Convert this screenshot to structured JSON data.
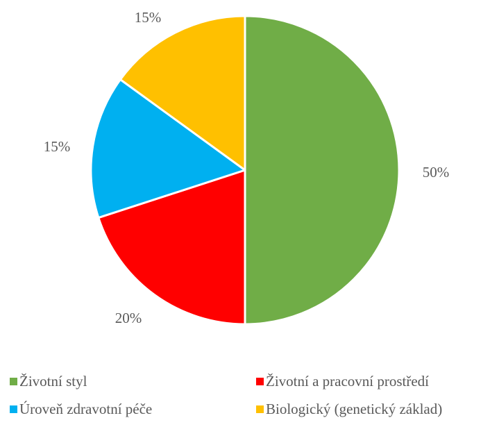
{
  "chart_data": {
    "type": "pie",
    "title": "",
    "slices": [
      {
        "label": "Životní styl",
        "value": 50,
        "value_label": "50%",
        "color": "#70AD47"
      },
      {
        "label": "Životní a pracovní prostředí",
        "value": 20,
        "value_label": "20%",
        "color": "#FF0000"
      },
      {
        "label": "Úroveň zdravotní péče",
        "value": 15,
        "value_label": "15%",
        "color": "#00B0F0"
      },
      {
        "label": "Biologický (genetický základ)",
        "value": 15,
        "value_label": "15%",
        "color": "#FFC000"
      }
    ],
    "start_angle": "12 o'clock",
    "direction": "clockwise",
    "legend_position": "bottom",
    "legend_columns": 2
  }
}
